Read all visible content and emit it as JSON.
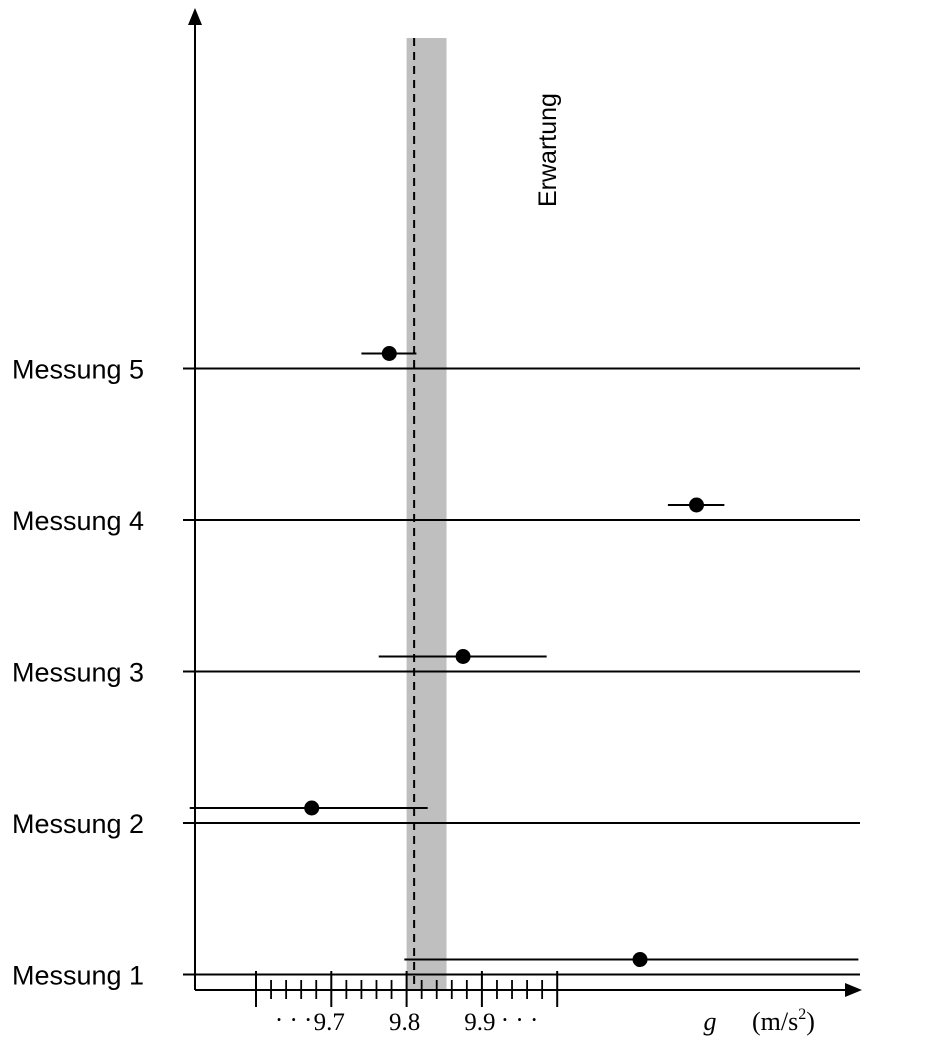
{
  "chart_data": {
    "type": "scatter",
    "title": "",
    "xlabel": {
      "symbol": "g",
      "unit": "(m/s",
      "unit_exp": "2",
      "unit_close": ")"
    },
    "ylabel": "",
    "xlim": [
      9.5,
      10.2
    ],
    "x_major_ticks": [
      9.6,
      9.7,
      9.8,
      9.9,
      10.0
    ],
    "x_minor_step": 0.02,
    "x_tick_labels": [
      {
        "value": 9.7,
        "label": "9.7"
      },
      {
        "value": 9.8,
        "label": "9.8"
      },
      {
        "value": 9.9,
        "label": "9.9"
      }
    ],
    "x_ellipsis_left": "· · ·",
    "x_ellipsis_right": "· · ·",
    "grid": false,
    "expected": {
      "label": "Erwartung",
      "value": 9.81,
      "band": [
        9.8,
        9.853
      ]
    },
    "measurements": [
      {
        "label": "Messung 1",
        "row": 1,
        "x": 10.11,
        "xerr_low": 9.797,
        "xerr_high": 10.4
      },
      {
        "label": "Messung 2",
        "row": 2,
        "x": 9.674,
        "xerr_low": 9.512,
        "xerr_high": 9.828
      },
      {
        "label": "Messung 3",
        "row": 3,
        "x": 9.875,
        "xerr_low": 9.763,
        "xerr_high": 9.986
      },
      {
        "label": "Messung 4",
        "row": 4,
        "x": 10.185,
        "xerr_low": 10.147,
        "xerr_high": 10.222
      },
      {
        "label": "Messung 5",
        "row": 5,
        "x": 9.777,
        "xerr_low": 9.74,
        "xerr_high": 9.813
      }
    ]
  }
}
